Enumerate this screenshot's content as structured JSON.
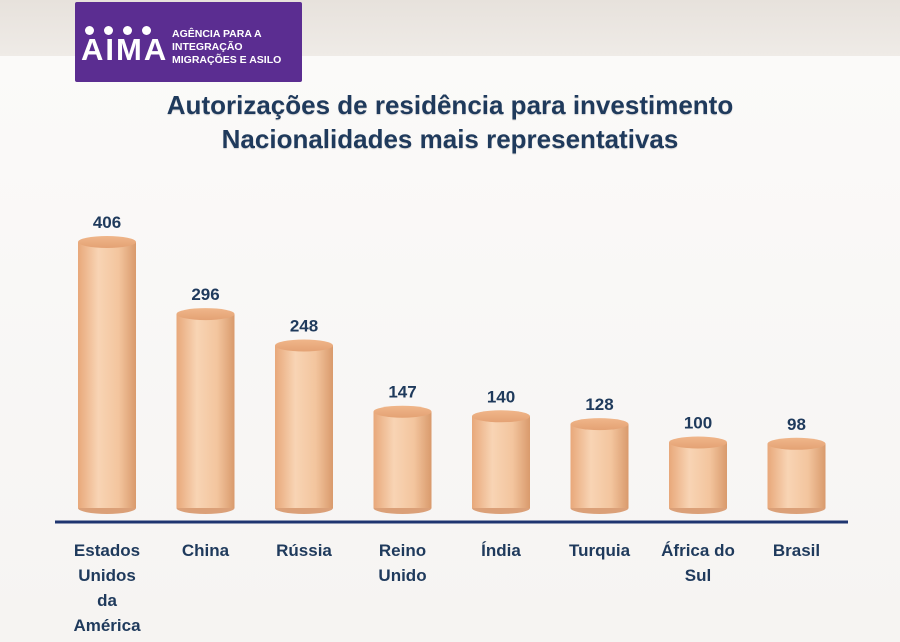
{
  "logo": {
    "mark": "AIMA",
    "lines": [
      "AGÊNCIA PARA A",
      "INTEGRAÇÃO",
      "MIGRAÇÕES E ASILO"
    ]
  },
  "colors": {
    "bar_fill": "#f3c59e",
    "bar_shade": "#d99a6c",
    "axis": "#1f3570",
    "label": "#1f3a5c"
  },
  "chart_data": {
    "type": "bar",
    "title": [
      "Autorizações de residência para investimento",
      "Nacionalidades mais representativas"
    ],
    "categories": [
      [
        "Estados",
        "Unidos",
        "da",
        "América"
      ],
      [
        "China"
      ],
      [
        "Rússia"
      ],
      [
        "Reino",
        "Unido"
      ],
      [
        "Índia"
      ],
      [
        "Turquia"
      ],
      [
        "África do",
        "Sul"
      ],
      [
        "Brasil"
      ]
    ],
    "values": [
      406,
      296,
      248,
      147,
      140,
      128,
      100,
      98
    ],
    "value_labels": [
      "406",
      "296",
      "248",
      "147",
      "140",
      "128",
      "100",
      "98"
    ],
    "ylim": [
      0,
      406
    ],
    "grid": false,
    "legend": "none"
  }
}
